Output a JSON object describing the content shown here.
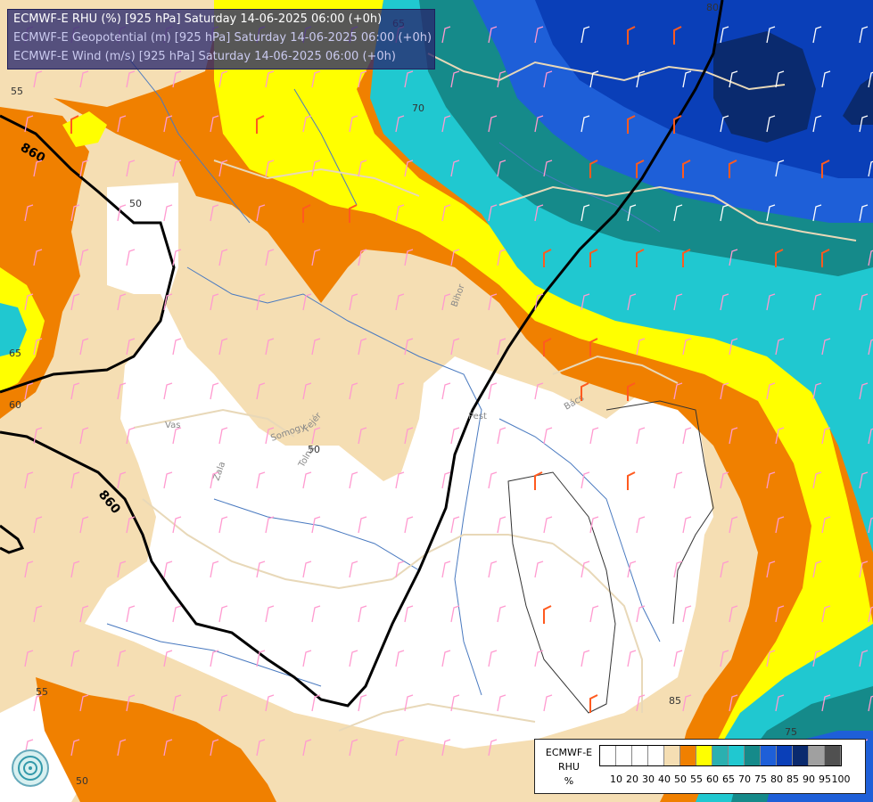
{
  "header": {
    "line1": "ECMWF-E RHU (%) [925 hPa] Saturday 14-06-2025 06:00 (+0h)",
    "line2": "ECMWF-E Geopotential (m) [925 hPa] Saturday 14-06-2025 06:00 (+0h)",
    "line3": "ECMWF-E Wind (m/s) [925 hPa] Saturday 14-06-2025 06:00 (+0h)"
  },
  "legend": {
    "model": "ECMWF-E",
    "variable": "RHU",
    "unit": "%",
    "levels": [
      "10",
      "20",
      "30",
      "40",
      "50",
      "55",
      "60",
      "65",
      "70",
      "75",
      "80",
      "85",
      "90",
      "95",
      "100"
    ],
    "colors": [
      "#ffffff",
      "#ffffff",
      "#ffffff",
      "#ffffff",
      "#f5deb3",
      "#f08000",
      "#ffff00",
      "#2ab0b0",
      "#20c8d0",
      "#158a8a",
      "#1e5fd8",
      "#0a3fb8",
      "#0a2a6e",
      "#a0a0a0",
      "#505050"
    ]
  },
  "contours": {
    "geopotential_labels": [
      "860",
      "860",
      "860"
    ],
    "rhu_labels": [
      "55",
      "50",
      "65",
      "60",
      "70",
      "80",
      "65",
      "75",
      "85",
      "50",
      "55",
      "50"
    ]
  },
  "places": [
    "Vas",
    "Zala",
    "Somogy",
    "Fejér",
    "Tolna",
    "Pest",
    "Bács",
    "Bihor"
  ],
  "colors": {
    "border_line": "#e8d8b8",
    "river": "#4a7ac0",
    "barb_orange": "#ff5a1f",
    "barb_pink": "#ff9ad0",
    "barb_white": "#ffffff"
  }
}
